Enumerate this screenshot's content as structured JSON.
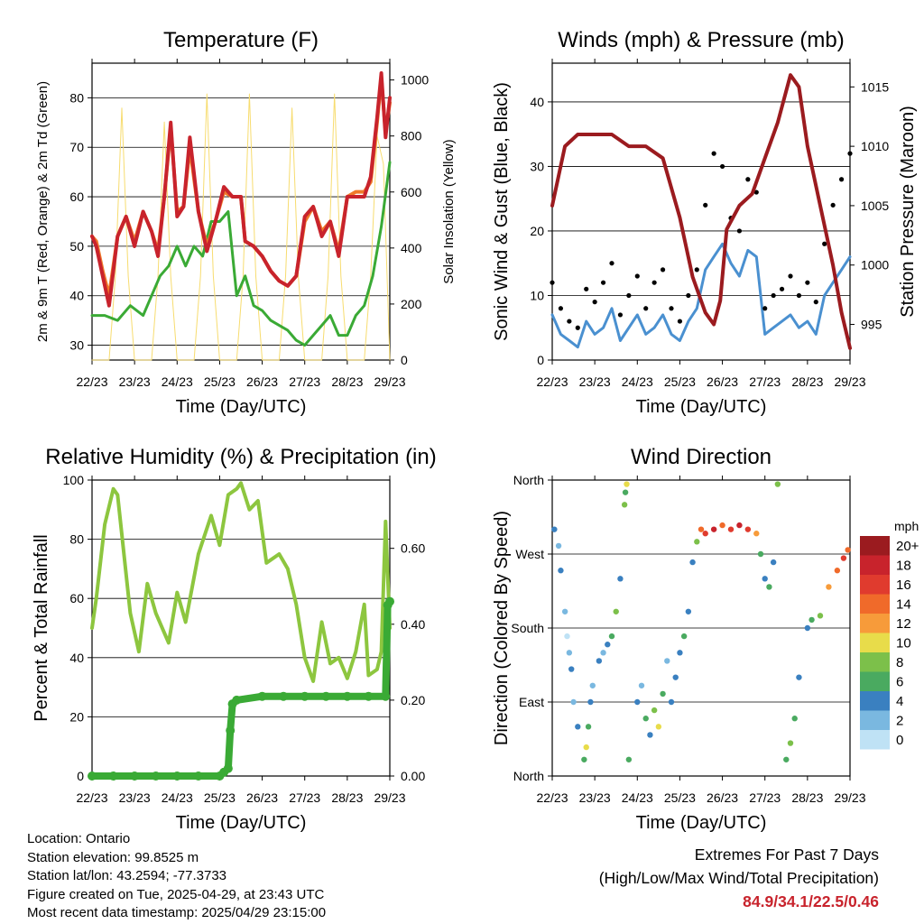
{
  "time_ticks": [
    "22/23",
    "23/23",
    "24/23",
    "25/23",
    "26/23",
    "27/23",
    "28/23",
    "29/23"
  ],
  "chart_data": [
    {
      "type": "line",
      "title": "Temperature (F)",
      "xlabel": "Time (Day/UTC)",
      "ylabel": "2m & 9m T (Red, Orange) & 2m Td (Green)",
      "y2label": "Solar Insolation (Yellow)",
      "ylim": [
        27,
        87
      ],
      "y2lim": [
        0,
        1060
      ],
      "y_ticks": [
        30,
        40,
        50,
        60,
        70,
        80
      ],
      "y2_ticks": [
        0,
        200,
        400,
        600,
        800,
        1000
      ],
      "grid": true,
      "series": [
        {
          "name": "2m T",
          "color": "#c8232c",
          "axis": "left",
          "x": [
            0,
            0.1,
            0.25,
            0.4,
            0.6,
            0.8,
            1.0,
            1.2,
            1.4,
            1.55,
            1.7,
            1.85,
            2.0,
            2.15,
            2.3,
            2.5,
            2.7,
            2.9,
            3.1,
            3.3,
            3.5,
            3.6,
            3.8,
            4.0,
            4.2,
            4.4,
            4.6,
            4.8,
            5.0,
            5.2,
            5.4,
            5.6,
            5.8,
            6.0,
            6.2,
            6.4,
            6.55,
            6.7,
            6.8,
            6.9,
            7.0
          ],
          "y": [
            52,
            50,
            44,
            38,
            52,
            56,
            50,
            57,
            53,
            48,
            60,
            75,
            56,
            58,
            72,
            57,
            49,
            55,
            62,
            60,
            60,
            51,
            50,
            48,
            45,
            43,
            42,
            44,
            56,
            58,
            52,
            55,
            48,
            60,
            60,
            60,
            64,
            76,
            85,
            72,
            80
          ]
        },
        {
          "name": "9m T",
          "color": "#f07a2a",
          "axis": "left",
          "x": [
            0,
            0.1,
            0.25,
            0.4,
            0.6,
            0.8,
            1.0,
            1.2,
            1.4,
            1.55,
            1.7,
            1.85,
            2.0,
            2.15,
            2.3,
            2.5,
            2.7,
            2.9,
            3.1,
            3.3,
            3.5,
            3.6,
            3.8,
            4.0,
            4.2,
            4.4,
            4.6,
            4.8,
            5.0,
            5.2,
            5.4,
            5.6,
            5.8,
            6.0,
            6.2,
            6.4,
            6.55,
            6.7,
            6.8,
            6.9,
            7.0
          ],
          "y": [
            52,
            51,
            45,
            40,
            52,
            56,
            51,
            57,
            53,
            49,
            60,
            74,
            57,
            58,
            70,
            57,
            50,
            55,
            61,
            60,
            60,
            51,
            50,
            48,
            45,
            43,
            42,
            44,
            55,
            58,
            53,
            55,
            49,
            60,
            61,
            61,
            63,
            75,
            84,
            73,
            79
          ]
        },
        {
          "name": "2m Td",
          "color": "#3aaa35",
          "axis": "left",
          "x": [
            0,
            0.3,
            0.6,
            0.9,
            1.2,
            1.4,
            1.6,
            1.8,
            2.0,
            2.2,
            2.4,
            2.6,
            2.8,
            3.0,
            3.2,
            3.4,
            3.6,
            3.8,
            4.0,
            4.2,
            4.4,
            4.6,
            4.8,
            5.0,
            5.2,
            5.4,
            5.6,
            5.8,
            6.0,
            6.2,
            6.4,
            6.6,
            6.8,
            7.0
          ],
          "y": [
            36,
            36,
            35,
            38,
            36,
            40,
            44,
            46,
            50,
            46,
            50,
            48,
            55,
            55,
            57,
            40,
            44,
            38,
            37,
            35,
            34,
            33,
            31,
            30,
            32,
            34,
            36,
            32,
            32,
            36,
            38,
            44,
            54,
            67
          ]
        },
        {
          "name": "Solar Insolation",
          "color": "#f7dc6f",
          "axis": "right",
          "x": [
            0,
            0.4,
            0.55,
            0.7,
            0.85,
            1.0,
            1.4,
            1.55,
            1.7,
            1.85,
            2.0,
            2.4,
            2.55,
            2.7,
            2.85,
            3.0,
            3.4,
            3.55,
            3.7,
            3.85,
            4.0,
            4.4,
            4.55,
            4.7,
            4.85,
            5.0,
            5.4,
            5.55,
            5.7,
            5.85,
            6.0,
            6.4,
            6.55,
            6.7,
            6.85,
            7.0
          ],
          "y": [
            0,
            0,
            300,
            900,
            300,
            0,
            0,
            300,
            850,
            300,
            0,
            0,
            300,
            950,
            300,
            0,
            0,
            300,
            950,
            300,
            0,
            0,
            300,
            900,
            300,
            0,
            0,
            300,
            950,
            300,
            0,
            0,
            300,
            800,
            700,
            0
          ]
        }
      ]
    },
    {
      "type": "line",
      "title": "Winds (mph) & Pressure (mb)",
      "xlabel": "Time (Day/UTC)",
      "ylabel": "Sonic Wind & Gust (Blue, Black)",
      "y2label": "Station Pressure (Maroon)",
      "ylim": [
        0,
        46
      ],
      "y2lim": [
        992,
        1017
      ],
      "y_ticks": [
        0,
        10,
        20,
        30,
        40
      ],
      "y2_ticks": [
        995,
        1000,
        1005,
        1010,
        1015
      ],
      "grid": true,
      "series": [
        {
          "name": "Sonic Wind",
          "color": "#4a90d0",
          "axis": "left",
          "x": [
            0,
            0.2,
            0.4,
            0.6,
            0.8,
            1.0,
            1.2,
            1.4,
            1.6,
            1.8,
            2.0,
            2.2,
            2.4,
            2.6,
            2.8,
            3.0,
            3.2,
            3.4,
            3.6,
            3.8,
            4.0,
            4.2,
            4.4,
            4.6,
            4.8,
            5.0,
            5.2,
            5.4,
            5.6,
            5.8,
            6.0,
            6.2,
            6.4,
            6.6,
            6.8,
            7.0
          ],
          "y": [
            7,
            4,
            3,
            2,
            6,
            4,
            5,
            8,
            3,
            5,
            7,
            4,
            5,
            7,
            4,
            3,
            6,
            8,
            14,
            16,
            18,
            15,
            13,
            17,
            16,
            4,
            5,
            6,
            7,
            5,
            6,
            4,
            10,
            12,
            14,
            16
          ]
        },
        {
          "name": "Gust",
          "color": "#000000",
          "axis": "left",
          "x": [
            0,
            0.2,
            0.4,
            0.6,
            0.8,
            1.0,
            1.2,
            1.4,
            1.6,
            1.8,
            2.0,
            2.2,
            2.4,
            2.6,
            2.8,
            3.0,
            3.2,
            3.4,
            3.6,
            3.8,
            4.0,
            4.2,
            4.4,
            4.6,
            4.8,
            5.0,
            5.2,
            5.4,
            5.6,
            5.8,
            6.0,
            6.2,
            6.4,
            6.6,
            6.8,
            7.0
          ],
          "y": [
            12,
            8,
            6,
            5,
            11,
            9,
            12,
            15,
            7,
            10,
            13,
            8,
            12,
            14,
            8,
            6,
            10,
            14,
            24,
            32,
            30,
            22,
            20,
            28,
            26,
            8,
            10,
            11,
            13,
            10,
            12,
            9,
            18,
            24,
            28,
            32
          ]
        },
        {
          "name": "Station Pressure",
          "color": "#9b1b1f",
          "axis": "right",
          "x": [
            0,
            0.3,
            0.6,
            1.0,
            1.4,
            1.8,
            2.2,
            2.6,
            3.0,
            3.3,
            3.6,
            3.8,
            3.95,
            4.1,
            4.4,
            4.7,
            5.0,
            5.3,
            5.6,
            5.8,
            6.0,
            6.3,
            6.6,
            6.8,
            7.0
          ],
          "y": [
            1005,
            1010,
            1011,
            1011,
            1011,
            1010,
            1010,
            1009,
            1004,
            999,
            996,
            995,
            997,
            1003,
            1005,
            1006,
            1009,
            1012,
            1016,
            1015,
            1010,
            1005,
            1000,
            996,
            993
          ]
        }
      ]
    },
    {
      "type": "line",
      "title": "Relative Humidity (%) & Precipitation (in)",
      "xlabel": "Time (Day/UTC)",
      "ylabel": "Percent & Total Rainfall",
      "ylim": [
        0,
        100
      ],
      "y2lim": [
        0,
        0.78
      ],
      "y_ticks": [
        0,
        20,
        40,
        60,
        80,
        100
      ],
      "y2_ticks": [
        "0.00",
        "0.20",
        "0.40",
        "0.60"
      ],
      "grid": true,
      "series": [
        {
          "name": "Relative Humidity",
          "color": "#8dc63f",
          "axis": "left",
          "x": [
            0,
            0.1,
            0.3,
            0.5,
            0.6,
            0.9,
            1.1,
            1.3,
            1.5,
            1.8,
            2.0,
            2.2,
            2.5,
            2.8,
            3.0,
            3.2,
            3.4,
            3.5,
            3.7,
            3.9,
            4.1,
            4.4,
            4.6,
            4.8,
            5.0,
            5.2,
            5.4,
            5.6,
            5.8,
            6.0,
            6.2,
            6.4,
            6.5,
            6.7,
            6.8,
            6.9,
            7.0
          ],
          "y": [
            50,
            60,
            85,
            97,
            95,
            55,
            42,
            65,
            55,
            45,
            62,
            52,
            75,
            88,
            78,
            95,
            97,
            99,
            90,
            93,
            72,
            75,
            70,
            58,
            40,
            32,
            52,
            38,
            40,
            33,
            42,
            58,
            34,
            36,
            42,
            86,
            50
          ]
        },
        {
          "name": "Total Precipitation",
          "color": "#3aaa35",
          "axis": "right",
          "x": [
            0,
            0.5,
            1.0,
            1.5,
            2.0,
            2.5,
            3.0,
            3.1,
            3.2,
            3.25,
            3.3,
            3.4,
            4.0,
            4.5,
            5.0,
            5.5,
            6.0,
            6.5,
            6.9,
            6.95,
            7.0
          ],
          "y": [
            0,
            0,
            0,
            0,
            0,
            0,
            0,
            0.01,
            0.02,
            0.12,
            0.19,
            0.2,
            0.21,
            0.21,
            0.21,
            0.21,
            0.21,
            0.21,
            0.21,
            0.45,
            0.46
          ]
        }
      ]
    },
    {
      "type": "scatter",
      "title": "Wind Direction",
      "xlabel": "Time (Day/UTC)",
      "ylabel": "Direction (Colored By Speed)",
      "y_ticks": [
        "North",
        "East",
        "South",
        "West",
        "North"
      ],
      "grid": true,
      "colorbar": {
        "unit": "mph",
        "labels": [
          "20+",
          "18",
          "16",
          "14",
          "12",
          "10",
          "8",
          "6",
          "4",
          "2",
          "0"
        ],
        "colors": [
          "#9b1b1f",
          "#c8232c",
          "#e03b2e",
          "#f06a2a",
          "#f79b3a",
          "#e8dc4a",
          "#7cc04a",
          "#4aaa60",
          "#3a80c0",
          "#7ab8e0",
          "#bfe2f5"
        ]
      },
      "points": [
        {
          "x": 0.05,
          "dir": 300,
          "speed": 4
        },
        {
          "x": 0.15,
          "dir": 280,
          "speed": 2
        },
        {
          "x": 0.2,
          "dir": 250,
          "speed": 4
        },
        {
          "x": 0.3,
          "dir": 200,
          "speed": 2
        },
        {
          "x": 0.35,
          "dir": 170,
          "speed": 0
        },
        {
          "x": 0.4,
          "dir": 150,
          "speed": 2
        },
        {
          "x": 0.45,
          "dir": 130,
          "speed": 4
        },
        {
          "x": 0.5,
          "dir": 90,
          "speed": 2
        },
        {
          "x": 0.6,
          "dir": 60,
          "speed": 4
        },
        {
          "x": 0.75,
          "dir": 20,
          "speed": 6
        },
        {
          "x": 0.8,
          "dir": 35,
          "speed": 10
        },
        {
          "x": 0.85,
          "dir": 60,
          "speed": 6
        },
        {
          "x": 0.9,
          "dir": 90,
          "speed": 4
        },
        {
          "x": 0.95,
          "dir": 110,
          "speed": 2
        },
        {
          "x": 1.1,
          "dir": 140,
          "speed": 4
        },
        {
          "x": 1.2,
          "dir": 150,
          "speed": 2
        },
        {
          "x": 1.3,
          "dir": 160,
          "speed": 4
        },
        {
          "x": 1.4,
          "dir": 170,
          "speed": 6
        },
        {
          "x": 1.5,
          "dir": 200,
          "speed": 8
        },
        {
          "x": 1.6,
          "dir": 240,
          "speed": 4
        },
        {
          "x": 1.7,
          "dir": 330,
          "speed": 8
        },
        {
          "x": 1.72,
          "dir": 345,
          "speed": 6
        },
        {
          "x": 1.75,
          "dir": 355,
          "speed": 10
        },
        {
          "x": 1.8,
          "dir": 20,
          "speed": 6
        },
        {
          "x": 2.0,
          "dir": 90,
          "speed": 4
        },
        {
          "x": 2.1,
          "dir": 110,
          "speed": 2
        },
        {
          "x": 2.2,
          "dir": 70,
          "speed": 6
        },
        {
          "x": 2.3,
          "dir": 50,
          "speed": 4
        },
        {
          "x": 2.4,
          "dir": 80,
          "speed": 8
        },
        {
          "x": 2.5,
          "dir": 60,
          "speed": 10
        },
        {
          "x": 2.6,
          "dir": 100,
          "speed": 6
        },
        {
          "x": 2.7,
          "dir": 140,
          "speed": 2
        },
        {
          "x": 2.8,
          "dir": 90,
          "speed": 4
        },
        {
          "x": 2.9,
          "dir": 120,
          "speed": 4
        },
        {
          "x": 3.0,
          "dir": 150,
          "speed": 4
        },
        {
          "x": 3.1,
          "dir": 170,
          "speed": 6
        },
        {
          "x": 3.2,
          "dir": 200,
          "speed": 4
        },
        {
          "x": 3.3,
          "dir": 260,
          "speed": 4
        },
        {
          "x": 3.4,
          "dir": 285,
          "speed": 8
        },
        {
          "x": 3.5,
          "dir": 300,
          "speed": 14
        },
        {
          "x": 3.6,
          "dir": 295,
          "speed": 16
        },
        {
          "x": 3.8,
          "dir": 300,
          "speed": 18
        },
        {
          "x": 4.0,
          "dir": 305,
          "speed": 14
        },
        {
          "x": 4.2,
          "dir": 300,
          "speed": 16
        },
        {
          "x": 4.4,
          "dir": 305,
          "speed": 18
        },
        {
          "x": 4.6,
          "dir": 300,
          "speed": 16
        },
        {
          "x": 4.8,
          "dir": 295,
          "speed": 12
        },
        {
          "x": 4.9,
          "dir": 270,
          "speed": 6
        },
        {
          "x": 5.0,
          "dir": 240,
          "speed": 4
        },
        {
          "x": 5.1,
          "dir": 230,
          "speed": 6
        },
        {
          "x": 5.2,
          "dir": 260,
          "speed": 4
        },
        {
          "x": 5.3,
          "dir": 355,
          "speed": 8
        },
        {
          "x": 5.5,
          "dir": 20,
          "speed": 6
        },
        {
          "x": 5.6,
          "dir": 40,
          "speed": 8
        },
        {
          "x": 5.7,
          "dir": 70,
          "speed": 6
        },
        {
          "x": 5.8,
          "dir": 120,
          "speed": 4
        },
        {
          "x": 6.0,
          "dir": 180,
          "speed": 4
        },
        {
          "x": 6.1,
          "dir": 190,
          "speed": 6
        },
        {
          "x": 6.3,
          "dir": 195,
          "speed": 8
        },
        {
          "x": 6.5,
          "dir": 230,
          "speed": 12
        },
        {
          "x": 6.7,
          "dir": 250,
          "speed": 14
        },
        {
          "x": 6.85,
          "dir": 265,
          "speed": 16
        },
        {
          "x": 6.95,
          "dir": 275,
          "speed": 14
        }
      ]
    }
  ],
  "info": {
    "location": "Location: Ontario",
    "elevation": "Station elevation: 99.8525 m",
    "latlon": "Station lat/lon: 43.2594; -77.3733",
    "created": "Figure created on Tue, 2025-04-29, at 23:43 UTC",
    "recent": "Most recent data timestamp: 2025/04/29 23:15:00"
  },
  "extremes": {
    "line1": "Extremes For Past 7 Days",
    "line2": "(High/Low/Max Wind/Total Precipitation)",
    "values": "84.9/34.1/22.5/0.46"
  }
}
